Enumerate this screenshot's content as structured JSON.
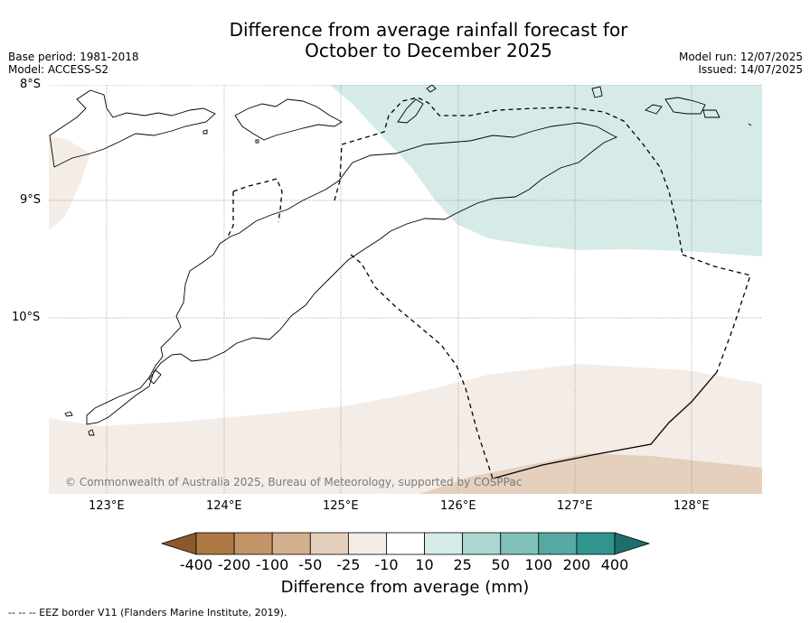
{
  "title": {
    "line1": "Difference from average rainfall forecast for",
    "line2": "October to December 2025"
  },
  "meta": {
    "base_period": "Base period: 1981-2018",
    "model": "Model: ACCESS-S2",
    "model_run": "Model run: 12/07/2025",
    "issued": "Issued: 14/07/2025"
  },
  "axes": {
    "lat_labels": [
      "8°S",
      "9°S",
      "10°S"
    ],
    "lon_labels": [
      "123°E",
      "124°E",
      "125°E",
      "126°E",
      "127°E",
      "128°E"
    ]
  },
  "credit": "© Commonwealth of Australia 2025, Bureau of Meteorology, supported by COSPPac",
  "colorbar": {
    "title": "Difference from average (mm)",
    "tick_labels": [
      "-400",
      "-200",
      "-100",
      "-50",
      "-25",
      "-10",
      "10",
      "25",
      "50",
      "100",
      "200",
      "400"
    ],
    "colors": [
      "#8c5a2a",
      "#ad7a43",
      "#c29468",
      "#d4b08e",
      "#e4d0bd",
      "#f4ede7",
      "#ffffff",
      "#d6ebe8",
      "#acd6d1",
      "#80c1ba",
      "#58a9a3",
      "#2f958e",
      "#1c6f6a"
    ]
  },
  "legend_note": "--  --  -- EEZ border V11 (Flanders Marine Institute, 2019).",
  "map_colors": {
    "wet_light": "#d6ebe8",
    "dry_light": "#f4ede7",
    "dry_mid": "#e4d0bd"
  }
}
